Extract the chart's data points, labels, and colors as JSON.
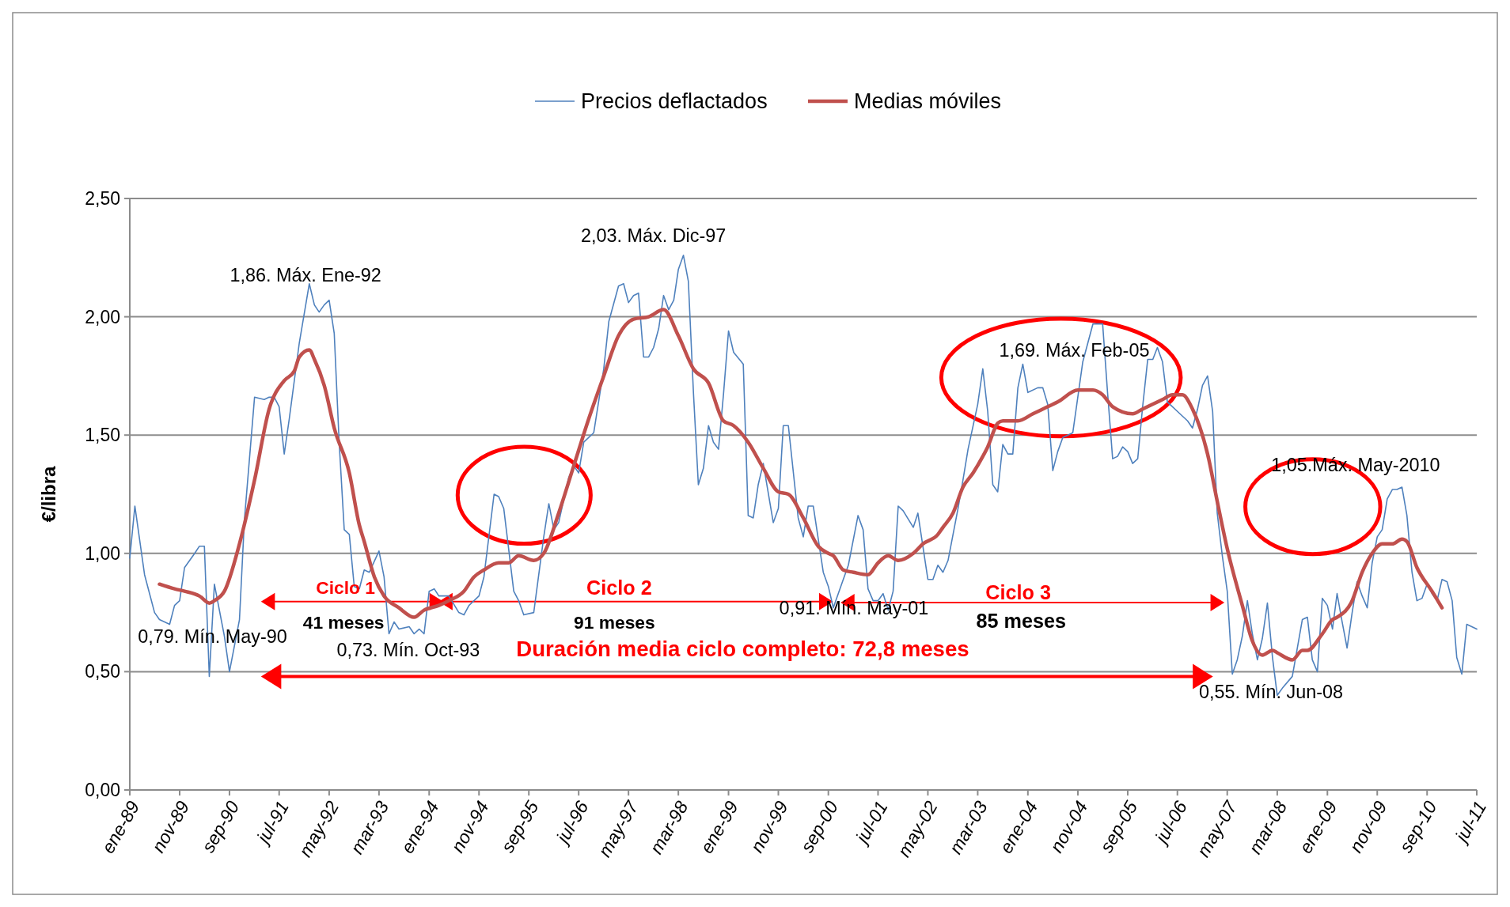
{
  "chart_data": {
    "type": "line",
    "ylabel": "€/libra",
    "xlim": [
      "1989-01",
      "2011-07"
    ],
    "xticks": [
      {
        "value": "1989-01",
        "label": "ene-89"
      },
      {
        "value": "1989-11",
        "label": "nov-89"
      },
      {
        "value": "1990-09",
        "label": "sep-90"
      },
      {
        "value": "1991-07",
        "label": "jul-91"
      },
      {
        "value": "1992-05",
        "label": "may-92"
      },
      {
        "value": "1993-03",
        "label": "mar-93"
      },
      {
        "value": "1994-01",
        "label": "ene-94"
      },
      {
        "value": "1994-11",
        "label": "nov-94"
      },
      {
        "value": "1995-09",
        "label": "sep-95"
      },
      {
        "value": "1996-07",
        "label": "jul-96"
      },
      {
        "value": "1997-05",
        "label": "may-97"
      },
      {
        "value": "1998-03",
        "label": "mar-98"
      },
      {
        "value": "1999-01",
        "label": "ene-99"
      },
      {
        "value": "1999-11",
        "label": "nov-99"
      },
      {
        "value": "2000-09",
        "label": "sep-00"
      },
      {
        "value": "2001-07",
        "label": "jul-01"
      },
      {
        "value": "2002-05",
        "label": "may-02"
      },
      {
        "value": "2003-03",
        "label": "mar-03"
      },
      {
        "value": "2004-01",
        "label": "ene-04"
      },
      {
        "value": "2004-11",
        "label": "nov-04"
      },
      {
        "value": "2005-09",
        "label": "sep-05"
      },
      {
        "value": "2006-07",
        "label": "jul-06"
      },
      {
        "value": "2007-05",
        "label": "may-07"
      },
      {
        "value": "2008-03",
        "label": "mar-08"
      },
      {
        "value": "2009-01",
        "label": "ene-09"
      },
      {
        "value": "2009-11",
        "label": "nov-09"
      },
      {
        "value": "2010-09",
        "label": "sep-10"
      },
      {
        "value": "2011-07",
        "label": "jul-11"
      }
    ],
    "ylim": [
      0,
      2.5
    ],
    "yticks": [
      {
        "value": 0,
        "label": "0,00"
      },
      {
        "value": 0.5,
        "label": "0,50"
      },
      {
        "value": 1,
        "label": "1,00"
      },
      {
        "value": 1.5,
        "label": "1,50"
      },
      {
        "value": 2,
        "label": "2,00"
      },
      {
        "value": 2.5,
        "label": "2,50"
      }
    ],
    "grid": "y",
    "legend": "top",
    "marker": "none",
    "line_style": "solid",
    "series": [
      {
        "name": "Precios deflactados",
        "color": "#4f81bd",
        "x": [
          "1989-01",
          "1989-02",
          "1989-04",
          "1989-06",
          "1989-07",
          "1989-09",
          "1989-10",
          "1989-11",
          "1989-12",
          "1990-02",
          "1990-03",
          "1990-04",
          "1990-05",
          "1990-06",
          "1990-08",
          "1990-09",
          "1990-11",
          "1990-12",
          "1991-02",
          "1991-04",
          "1991-05",
          "1991-06",
          "1991-07",
          "1991-08",
          "1991-09",
          "1991-11",
          "1992-01",
          "1992-02",
          "1992-03",
          "1992-04",
          "1992-05",
          "1992-06",
          "1992-07",
          "1992-08",
          "1992-09",
          "1992-10",
          "1992-11",
          "1992-12",
          "1993-01",
          "1993-03",
          "1993-04",
          "1993-05",
          "1993-06",
          "1993-07",
          "1993-09",
          "1993-10",
          "1993-11",
          "1993-12",
          "1994-01",
          "1994-02",
          "1994-03",
          "1994-05",
          "1994-07",
          "1994-08",
          "1994-09",
          "1994-11",
          "1994-12",
          "1995-02",
          "1995-03",
          "1995-04",
          "1995-06",
          "1995-07",
          "1995-08",
          "1995-10",
          "1995-12",
          "1996-01",
          "1996-02",
          "1996-03",
          "1996-05",
          "1996-06",
          "1996-07",
          "1996-08",
          "1996-10",
          "1996-12",
          "1997-01",
          "1997-03",
          "1997-04",
          "1997-05",
          "1997-06",
          "1997-07",
          "1997-08",
          "1997-09",
          "1997-10",
          "1997-11",
          "1997-12",
          "1998-01",
          "1998-02",
          "1998-03",
          "1998-04",
          "1998-05",
          "1998-06",
          "1998-07",
          "1998-08",
          "1998-09",
          "1998-10",
          "1998-11",
          "1998-12",
          "1999-01",
          "1999-02",
          "1999-04",
          "1999-05",
          "1999-06",
          "1999-07",
          "1999-08",
          "1999-10",
          "1999-11",
          "1999-12",
          "2000-01",
          "2000-03",
          "2000-04",
          "2000-05",
          "2000-06",
          "2000-08",
          "2000-09",
          "2000-10",
          "2000-12",
          "2001-01",
          "2001-03",
          "2001-04",
          "2001-05",
          "2001-06",
          "2001-07",
          "2001-08",
          "2001-09",
          "2001-10",
          "2001-11",
          "2001-12",
          "2002-02",
          "2002-03",
          "2002-05",
          "2002-06",
          "2002-07",
          "2002-08",
          "2002-09",
          "2002-11",
          "2002-12",
          "2003-01",
          "2003-03",
          "2003-04",
          "2003-05",
          "2003-06",
          "2003-07",
          "2003-08",
          "2003-09",
          "2003-10",
          "2003-11",
          "2003-12",
          "2004-01",
          "2004-03",
          "2004-04",
          "2004-05",
          "2004-06",
          "2004-07",
          "2004-08",
          "2004-10",
          "2004-12",
          "2005-02",
          "2005-04",
          "2005-05",
          "2005-06",
          "2005-07",
          "2005-08",
          "2005-09",
          "2005-10",
          "2005-11",
          "2005-12",
          "2006-01",
          "2006-02",
          "2006-03",
          "2006-04",
          "2006-05",
          "2006-07",
          "2006-09",
          "2006-10",
          "2006-11",
          "2006-12",
          "2007-01",
          "2007-02",
          "2007-03",
          "2007-04",
          "2007-05",
          "2007-06",
          "2007-07",
          "2007-08",
          "2007-09",
          "2007-10",
          "2007-11",
          "2007-12",
          "2008-01",
          "2008-02",
          "2008-03",
          "2008-04",
          "2008-06",
          "2008-08",
          "2008-09",
          "2008-10",
          "2008-11",
          "2008-12",
          "2009-01",
          "2009-02",
          "2009-03",
          "2009-04",
          "2009-05",
          "2009-06",
          "2009-07",
          "2009-08",
          "2009-09",
          "2009-10",
          "2009-11",
          "2009-12",
          "2010-01",
          "2010-02",
          "2010-03",
          "2010-04",
          "2010-05",
          "2010-06",
          "2010-07",
          "2010-08",
          "2010-09",
          "2010-10",
          "2010-11",
          "2010-12",
          "2011-01",
          "2011-02",
          "2011-03",
          "2011-04",
          "2011-05",
          "2011-07"
        ],
        "values": [
          0.98,
          1.2,
          0.91,
          0.75,
          0.72,
          0.7,
          0.78,
          0.8,
          0.94,
          1.0,
          1.03,
          1.03,
          0.48,
          0.87,
          0.65,
          0.5,
          0.72,
          1.14,
          1.66,
          1.65,
          1.66,
          1.66,
          1.62,
          1.42,
          1.57,
          1.89,
          2.14,
          2.05,
          2.02,
          2.05,
          2.07,
          1.93,
          1.47,
          1.1,
          1.08,
          0.86,
          0.85,
          0.93,
          0.92,
          1.01,
          0.9,
          0.66,
          0.71,
          0.68,
          0.69,
          0.66,
          0.68,
          0.66,
          0.84,
          0.85,
          0.82,
          0.82,
          0.75,
          0.74,
          0.78,
          0.82,
          0.9,
          1.25,
          1.24,
          1.19,
          0.84,
          0.8,
          0.74,
          0.75,
          1.07,
          1.21,
          1.1,
          1.13,
          1.32,
          1.37,
          1.34,
          1.47,
          1.51,
          1.78,
          1.98,
          2.13,
          2.14,
          2.06,
          2.09,
          2.1,
          1.83,
          1.83,
          1.87,
          1.95,
          2.09,
          2.03,
          2.07,
          2.2,
          2.26,
          2.15,
          1.68,
          1.29,
          1.36,
          1.54,
          1.47,
          1.44,
          1.67,
          1.94,
          1.85,
          1.8,
          1.16,
          1.15,
          1.29,
          1.38,
          1.13,
          1.19,
          1.54,
          1.54,
          1.15,
          1.07,
          1.2,
          1.2,
          0.92,
          0.86,
          0.77,
          0.89,
          0.95,
          1.16,
          1.1,
          0.85,
          0.8,
          0.8,
          0.83,
          0.76,
          0.84,
          1.2,
          1.18,
          1.11,
          1.17,
          0.89,
          0.89,
          0.95,
          0.92,
          0.97,
          1.19,
          1.31,
          1.44,
          1.63,
          1.78,
          1.6,
          1.29,
          1.26,
          1.46,
          1.42,
          1.42,
          1.7,
          1.8,
          1.68,
          1.7,
          1.7,
          1.63,
          1.35,
          1.43,
          1.49,
          1.51,
          1.81,
          1.97,
          1.97,
          1.68,
          1.4,
          1.41,
          1.45,
          1.43,
          1.38,
          1.4,
          1.62,
          1.82,
          1.82,
          1.87,
          1.81,
          1.64,
          1.6,
          1.56,
          1.53,
          1.61,
          1.71,
          1.75,
          1.6,
          1.17,
          0.99,
          0.84,
          0.49,
          0.55,
          0.65,
          0.8,
          0.66,
          0.55,
          0.64,
          0.79,
          0.56,
          0.4,
          0.43,
          0.48,
          0.72,
          0.73,
          0.55,
          0.5,
          0.81,
          0.78,
          0.68,
          0.83,
          0.71,
          0.6,
          0.75,
          0.88,
          0.82,
          0.77,
          0.96,
          1.07,
          1.1,
          1.23,
          1.27,
          1.27,
          1.28,
          1.16,
          0.92,
          0.8,
          0.81,
          0.87,
          0.83,
          0.8,
          0.89,
          0.88,
          0.8,
          0.56,
          0.49,
          0.7,
          0.68
        ]
      },
      {
        "name": "Medias móviles",
        "color": "#c0504d",
        "x": [
          "1989-07",
          "1989-10",
          "1989-12",
          "1990-03",
          "1990-05",
          "1990-06",
          "1990-08",
          "1990-11",
          "1991-02",
          "1991-05",
          "1991-08",
          "1991-10",
          "1991-11",
          "1992-01",
          "1992-02",
          "1992-04",
          "1992-06",
          "1992-09",
          "1992-11",
          "1992-12",
          "1993-02",
          "1993-04",
          "1993-07",
          "1993-10",
          "1993-12",
          "1994-03",
          "1994-05",
          "1994-08",
          "1994-10",
          "1994-12",
          "1995-03",
          "1995-05",
          "1995-07",
          "1995-10",
          "1995-12",
          "1996-03",
          "1996-06",
          "1996-09",
          "1996-12",
          "1997-03",
          "1997-06",
          "1997-09",
          "1997-12",
          "1998-03",
          "1998-06",
          "1998-09",
          "1998-12",
          "1999-02",
          "1999-05",
          "1999-08",
          "1999-11",
          "2000-01",
          "2000-04",
          "2000-07",
          "2000-09",
          "2000-10",
          "2000-12",
          "2001-02",
          "2001-05",
          "2001-07",
          "2001-09",
          "2001-11",
          "2002-02",
          "2002-04",
          "2002-07",
          "2002-08",
          "2002-10",
          "2002-12",
          "2003-02",
          "2003-04",
          "2003-05",
          "2003-07",
          "2003-08",
          "2003-11",
          "2004-02",
          "2004-05",
          "2004-07",
          "2004-11",
          "2005-02",
          "2005-04",
          "2005-06",
          "2005-10",
          "2005-12",
          "2006-04",
          "2006-06",
          "2006-08",
          "2006-10",
          "2007-01",
          "2007-03",
          "2007-05",
          "2007-08",
          "2007-10",
          "2007-12",
          "2008-02",
          "2008-03",
          "2008-06",
          "2008-08",
          "2008-09",
          "2008-12",
          "2009-02",
          "2009-03",
          "2009-06",
          "2009-08",
          "2009-10",
          "2009-12",
          "2010-02",
          "2010-04",
          "2010-05",
          "2010-07",
          "2010-10",
          "2010-12"
        ],
        "values": [
          0.87,
          0.85,
          0.84,
          0.82,
          0.79,
          0.8,
          0.84,
          1.04,
          1.31,
          1.61,
          1.73,
          1.77,
          1.83,
          1.86,
          1.82,
          1.71,
          1.53,
          1.34,
          1.12,
          1.05,
          0.9,
          0.82,
          0.77,
          0.73,
          0.76,
          0.78,
          0.8,
          0.84,
          0.9,
          0.93,
          0.96,
          0.96,
          0.99,
          0.97,
          1.0,
          1.17,
          1.37,
          1.57,
          1.75,
          1.92,
          1.99,
          2.0,
          2.03,
          1.92,
          1.78,
          1.72,
          1.56,
          1.54,
          1.47,
          1.36,
          1.26,
          1.25,
          1.15,
          1.03,
          1.0,
          0.99,
          0.93,
          0.92,
          0.91,
          0.96,
          0.99,
          0.97,
          1.0,
          1.04,
          1.08,
          1.11,
          1.17,
          1.28,
          1.34,
          1.41,
          1.45,
          1.55,
          1.56,
          1.56,
          1.59,
          1.62,
          1.64,
          1.69,
          1.69,
          1.67,
          1.62,
          1.59,
          1.61,
          1.65,
          1.67,
          1.67,
          1.61,
          1.42,
          1.22,
          1.02,
          0.78,
          0.63,
          0.57,
          0.59,
          0.58,
          0.55,
          0.59,
          0.59,
          0.66,
          0.72,
          0.73,
          0.8,
          0.92,
          1.0,
          1.04,
          1.04,
          1.06,
          1.05,
          0.94,
          0.84,
          0.77
        ]
      }
    ],
    "annotations": [
      "1,86. Máx. Ene-92",
      "2,03. Máx. Dic-97",
      "0,79. Mín. May-90",
      "0,73. Mín. Oct-93",
      "0,91. Mín. May-01",
      "1,69. Máx. Feb-05",
      "0,55. Mín. Jun-08",
      "1,05.Máx. May-2010",
      "Ciclo 1",
      "41 meses",
      "Ciclo 2",
      "91 meses",
      "Ciclo 3",
      "85 meses",
      "Duración media ciclo completo: 72,8 meses"
    ]
  }
}
